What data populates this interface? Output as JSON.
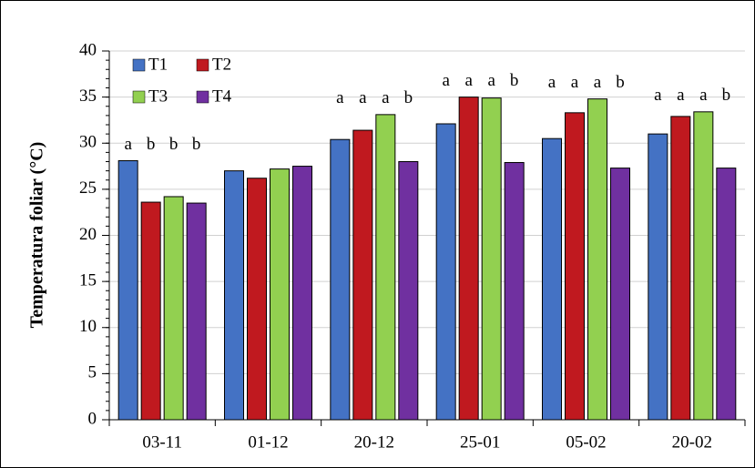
{
  "chart_data": {
    "type": "bar",
    "y_label": "Temperatura foliar (°C)",
    "categories": [
      "03-11",
      "01-12",
      "20-12",
      "25-01",
      "05-02",
      "20-02"
    ],
    "series": [
      {
        "name": "T1",
        "color": "#4472c4",
        "values": [
          28.1,
          27.0,
          30.4,
          32.1,
          30.5,
          31.0
        ],
        "letters": [
          "a",
          null,
          "a",
          "a",
          "a",
          "a"
        ]
      },
      {
        "name": "T2",
        "color": "#c0191f",
        "values": [
          23.6,
          26.2,
          31.4,
          35.0,
          33.3,
          32.9
        ],
        "letters": [
          "b",
          null,
          "a",
          "a",
          "a",
          "a"
        ]
      },
      {
        "name": "T3",
        "color": "#92d050",
        "values": [
          24.2,
          27.2,
          33.1,
          34.9,
          34.8,
          33.4
        ],
        "letters": [
          "b",
          null,
          "a",
          "a",
          "a",
          "a"
        ]
      },
      {
        "name": "T4",
        "color": "#7030a0",
        "values": [
          23.5,
          27.5,
          28.0,
          27.9,
          27.3,
          27.3
        ],
        "letters": [
          "b",
          null,
          "b",
          "b",
          "b",
          "b"
        ]
      }
    ],
    "ylim": [
      0,
      40
    ],
    "yticks": [
      0,
      5,
      10,
      15,
      20,
      25,
      30,
      35,
      40
    ],
    "grid": true,
    "legend": "top-left"
  }
}
